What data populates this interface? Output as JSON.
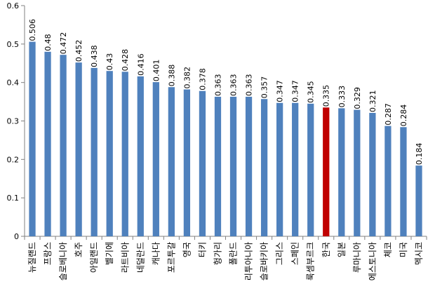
{
  "chart_data": {
    "type": "bar",
    "title": "",
    "xlabel": "",
    "ylabel": "",
    "ylim": [
      0,
      0.6
    ],
    "yticks": [
      "0",
      "0.1",
      "0.2",
      "0.3",
      "0.4",
      "0.5",
      "0.6"
    ],
    "grid": false,
    "legend": "none",
    "categories": [
      "뉴질랜드",
      "프랑스",
      "슬로베니아",
      "호주",
      "아일랜드",
      "벨기에",
      "라트비아",
      "네덜란드",
      "캐나다",
      "포르투갈",
      "영국",
      "터키",
      "헝가리",
      "폴란드",
      "리투아니아",
      "슬로바키아",
      "그리스",
      "스페인",
      "룩셈부르크",
      "한국",
      "일본",
      "루마니아",
      "에스토니아",
      "체코",
      "미국",
      "멕시코"
    ],
    "values": [
      0.506,
      0.48,
      0.472,
      0.452,
      0.438,
      0.43,
      0.428,
      0.416,
      0.401,
      0.388,
      0.382,
      0.378,
      0.363,
      0.363,
      0.363,
      0.357,
      0.347,
      0.347,
      0.345,
      0.335,
      0.333,
      0.329,
      0.321,
      0.287,
      0.284,
      0.184
    ],
    "value_labels": [
      "0.506",
      "0.48",
      "0.472",
      "0.452",
      "0.438",
      "0.43",
      "0.428",
      "0.416",
      "0.401",
      "0.388",
      "0.382",
      "0.378",
      "0.363",
      "0.363",
      "0.363",
      "0.357",
      "0.347",
      "0.347",
      "0.345",
      "0.335",
      "0.333",
      "0.329",
      "0.321",
      "0.287",
      "0.284",
      "0.184"
    ],
    "highlight_category": "한국",
    "colors": {
      "bar": "#4f81bd",
      "highlight": "#c00000",
      "axis": "#808080"
    }
  }
}
